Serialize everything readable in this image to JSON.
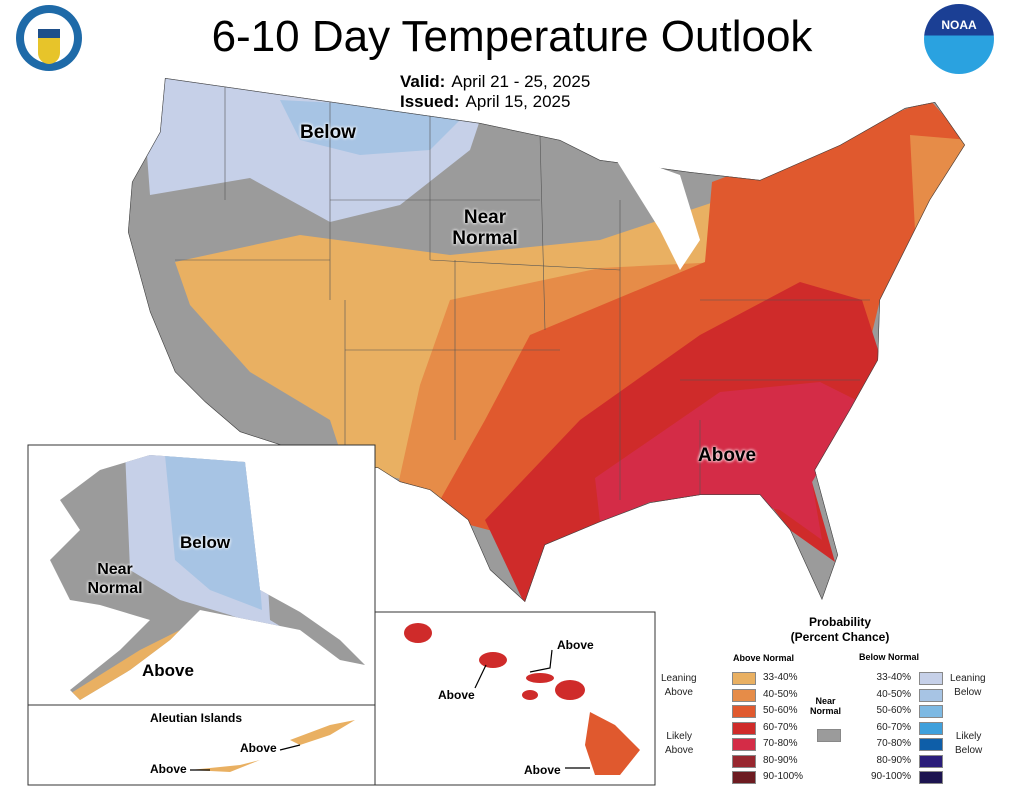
{
  "header": {
    "title": "6-10 Day Temperature Outlook",
    "valid_label": "Valid:",
    "valid_value": "April 21 - 25, 2025",
    "issued_label": "Issued:",
    "issued_value": "April 15, 2025"
  },
  "logos": {
    "left": "Department of Commerce seal - United States of America",
    "right": "NOAA"
  },
  "map_labels": {
    "conus_below": "Below",
    "conus_near_normal_1": "Near",
    "conus_near_normal_2": "Normal",
    "conus_above": "Above",
    "ak_below": "Below",
    "ak_near_1": "Near",
    "ak_near_2": "Normal",
    "ak_above": "Above",
    "aleutian_title": "Aleutian Islands",
    "aleutian_above_1": "Above",
    "aleutian_above_2": "Above",
    "hi_above_1": "Above",
    "hi_above_2": "Above",
    "hi_above_3": "Above"
  },
  "legend": {
    "title_1": "Probability",
    "title_2": "(Percent Chance)",
    "above_header": "Above Normal",
    "below_header": "Below Normal",
    "leaning_above_1": "Leaning",
    "leaning_above_2": "Above",
    "likely_above_1": "Likely",
    "likely_above_2": "Above",
    "leaning_below_1": "Leaning",
    "leaning_below_2": "Below",
    "likely_below_1": "Likely",
    "likely_below_2": "Below",
    "near_1": "Near",
    "near_2": "Normal",
    "near_color": "#9b9b9b",
    "above": [
      {
        "range": "33-40%",
        "color": "#e9b062"
      },
      {
        "range": "40-50%",
        "color": "#e68c48"
      },
      {
        "range": "50-60%",
        "color": "#e0592e"
      },
      {
        "range": "60-70%",
        "color": "#cf2b2a"
      },
      {
        "range": "70-80%",
        "color": "#d42c47"
      },
      {
        "range": "80-90%",
        "color": "#98272f"
      },
      {
        "range": "90-100%",
        "color": "#6d1b21"
      }
    ],
    "below": [
      {
        "range": "33-40%",
        "color": "#c6d0e8"
      },
      {
        "range": "40-50%",
        "color": "#a7c4e4"
      },
      {
        "range": "50-60%",
        "color": "#7db9e3"
      },
      {
        "range": "60-70%",
        "color": "#3fa0dc"
      },
      {
        "range": "70-80%",
        "color": "#0e5ea8"
      },
      {
        "range": "80-90%",
        "color": "#2a1d7a"
      },
      {
        "range": "90-100%",
        "color": "#1c1450"
      }
    ]
  }
}
